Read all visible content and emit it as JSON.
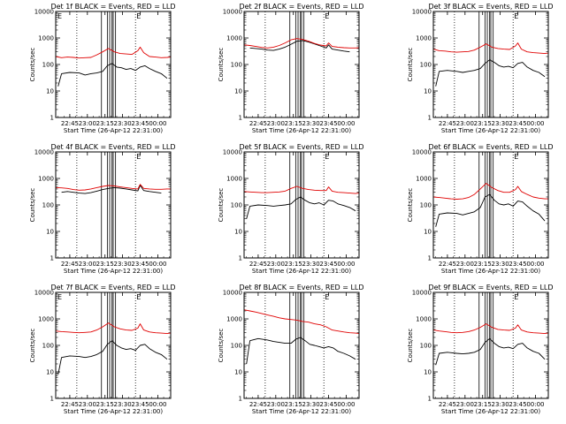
{
  "figure": {
    "xlabel": "Start Time (26-Apr-12 22:31:00)",
    "ylabel": "Counts/sec",
    "y_ticks": [
      {
        "value": 1,
        "label": "1"
      },
      {
        "value": 10,
        "label": "10"
      },
      {
        "value": 100,
        "label": "100"
      },
      {
        "value": 1000,
        "label": "1000"
      },
      {
        "value": 10000,
        "label": "10000"
      }
    ],
    "x_ticks": [
      {
        "value": 12,
        "label": "22:45"
      },
      {
        "value": 27,
        "label": "23:00"
      },
      {
        "value": 42,
        "label": "23:15"
      },
      {
        "value": 57,
        "label": "23:30"
      },
      {
        "value": 72,
        "label": "23:45"
      },
      {
        "value": 87,
        "label": "00:00"
      }
    ],
    "colors": {
      "events": "#000000",
      "lld": "#e00000",
      "axes": "#000000"
    }
  },
  "chart_data": [
    {
      "type": "line",
      "title": "Det 1f BLACK = Events, RED = LLD",
      "marker_left": "E",
      "marker_right": "E",
      "xlim": [
        0,
        98
      ],
      "ylim": [
        1,
        10000
      ],
      "yscale": "log",
      "series": [
        {
          "color": "#000000",
          "x": [
            2,
            5,
            12,
            20,
            25,
            30,
            35,
            40,
            44,
            48,
            52,
            56,
            60,
            64,
            68,
            72,
            76,
            80,
            85,
            90,
            95
          ],
          "y": [
            15,
            45,
            50,
            48,
            40,
            45,
            48,
            55,
            90,
            110,
            80,
            75,
            65,
            70,
            60,
            80,
            90,
            70,
            55,
            45,
            30
          ]
        },
        {
          "color": "#e00000",
          "x": [
            0,
            5,
            10,
            15,
            20,
            25,
            30,
            35,
            40,
            45,
            50,
            55,
            60,
            65,
            70,
            72,
            75,
            80,
            85,
            90,
            95,
            98
          ],
          "y": [
            200,
            180,
            190,
            185,
            175,
            180,
            185,
            230,
            300,
            400,
            300,
            260,
            250,
            240,
            330,
            450,
            280,
            200,
            190,
            180,
            185,
            190
          ]
        }
      ],
      "dashed_x": [
        18,
        68
      ],
      "box_x": [
        [
          39,
          44
        ],
        [
          46,
          48
        ],
        [
          49,
          51
        ]
      ]
    },
    {
      "type": "line",
      "title": "Det 2f BLACK = Events, RED = LLD",
      "marker_left": "",
      "marker_right": "E",
      "xlim": [
        0,
        98
      ],
      "ylim": [
        1,
        10000
      ],
      "yscale": "log",
      "series": [
        {
          "color": "#000000",
          "x": [
            5,
            10,
            15,
            20,
            25,
            30,
            35,
            40,
            45,
            50,
            55,
            60,
            65,
            70,
            72,
            75,
            80,
            85,
            90
          ],
          "y": [
            420,
            400,
            380,
            350,
            340,
            380,
            450,
            580,
            750,
            800,
            700,
            600,
            500,
            420,
            550,
            380,
            350,
            320,
            300
          ]
        },
        {
          "color": "#e00000",
          "x": [
            0,
            5,
            10,
            15,
            20,
            25,
            30,
            35,
            40,
            45,
            50,
            55,
            60,
            65,
            70,
            72,
            75,
            80,
            85,
            90,
            95,
            98
          ],
          "y": [
            550,
            520,
            480,
            440,
            420,
            450,
            520,
            650,
            850,
            950,
            880,
            750,
            620,
            540,
            500,
            650,
            480,
            450,
            430,
            420,
            420,
            430
          ]
        }
      ],
      "dashed_x": [
        18,
        68
      ],
      "box_x": [
        [
          39,
          44
        ],
        [
          46,
          48
        ],
        [
          49,
          51
        ]
      ]
    },
    {
      "type": "line",
      "title": "Det 3f BLACK = Events, RED = LLD",
      "marker_left": "",
      "marker_right": "E",
      "xlim": [
        0,
        98
      ],
      "ylim": [
        1,
        10000
      ],
      "yscale": "log",
      "series": [
        {
          "color": "#000000",
          "x": [
            2,
            5,
            12,
            20,
            25,
            30,
            35,
            40,
            44,
            48,
            52,
            56,
            60,
            64,
            68,
            72,
            76,
            80,
            85,
            90,
            95
          ],
          "y": [
            15,
            55,
            60,
            55,
            50,
            55,
            60,
            70,
            110,
            150,
            120,
            90,
            80,
            85,
            75,
            110,
            120,
            80,
            60,
            50,
            35
          ]
        },
        {
          "color": "#e00000",
          "x": [
            0,
            5,
            10,
            15,
            20,
            25,
            30,
            35,
            40,
            45,
            50,
            55,
            60,
            65,
            70,
            72,
            75,
            80,
            85,
            90,
            95,
            98
          ],
          "y": [
            380,
            330,
            320,
            300,
            290,
            300,
            310,
            350,
            450,
            600,
            450,
            400,
            380,
            370,
            500,
            650,
            380,
            300,
            280,
            270,
            260,
            270
          ]
        }
      ],
      "dashed_x": [
        18,
        68
      ],
      "box_x": [
        [
          39,
          44
        ],
        [
          46,
          48
        ],
        [
          49,
          51
        ]
      ]
    },
    {
      "type": "line",
      "title": "Det 4f BLACK = Events, RED = LLD",
      "marker_left": "",
      "marker_right": "E",
      "xlim": [
        0,
        98
      ],
      "ylim": [
        1,
        10000
      ],
      "yscale": "log",
      "series": [
        {
          "color": "#000000",
          "x": [
            5,
            10,
            15,
            20,
            25,
            30,
            35,
            40,
            45,
            50,
            55,
            60,
            65,
            70,
            72,
            75,
            80,
            85,
            90
          ],
          "y": [
            300,
            320,
            300,
            280,
            270,
            290,
            330,
            380,
            420,
            450,
            430,
            400,
            370,
            340,
            550,
            350,
            320,
            300,
            280
          ]
        },
        {
          "color": "#e00000",
          "x": [
            0,
            5,
            10,
            15,
            20,
            25,
            30,
            35,
            40,
            45,
            50,
            55,
            60,
            65,
            70,
            72,
            75,
            80,
            85,
            90,
            95,
            98
          ],
          "y": [
            450,
            440,
            420,
            380,
            360,
            370,
            400,
            450,
            500,
            540,
            520,
            480,
            450,
            420,
            400,
            600,
            420,
            400,
            390,
            390,
            400,
            400
          ]
        }
      ],
      "dashed_x": [
        18,
        68
      ],
      "box_x": [
        [
          39,
          44
        ],
        [
          46,
          48
        ],
        [
          49,
          51
        ]
      ]
    },
    {
      "type": "line",
      "title": "Det 5f BLACK = Events, RED = LLD",
      "marker_left": "",
      "marker_right": "E",
      "xlim": [
        0,
        98
      ],
      "ylim": [
        1,
        10000
      ],
      "yscale": "log",
      "series": [
        {
          "color": "#000000",
          "x": [
            2,
            5,
            12,
            20,
            25,
            30,
            35,
            40,
            44,
            48,
            52,
            56,
            60,
            64,
            68,
            72,
            76,
            80,
            85,
            90,
            95
          ],
          "y": [
            30,
            90,
            100,
            95,
            90,
            95,
            100,
            110,
            160,
            200,
            150,
            120,
            110,
            120,
            100,
            150,
            140,
            110,
            95,
            80,
            60
          ]
        },
        {
          "color": "#e00000",
          "x": [
            0,
            5,
            10,
            15,
            20,
            25,
            30,
            35,
            40,
            45,
            50,
            55,
            60,
            65,
            70,
            72,
            75,
            80,
            85,
            90,
            95,
            98
          ],
          "y": [
            320,
            310,
            300,
            290,
            290,
            300,
            310,
            330,
            420,
            500,
            420,
            380,
            360,
            350,
            350,
            480,
            330,
            300,
            290,
            280,
            270,
            280
          ]
        }
      ],
      "dashed_x": [
        18,
        68
      ],
      "box_x": [
        [
          39,
          44
        ],
        [
          46,
          48
        ],
        [
          49,
          51
        ]
      ]
    },
    {
      "type": "line",
      "title": "Det 6f BLACK = Events, RED = LLD",
      "marker_left": "",
      "marker_right": "E",
      "xlim": [
        0,
        98
      ],
      "ylim": [
        1,
        10000
      ],
      "yscale": "log",
      "series": [
        {
          "color": "#000000",
          "x": [
            2,
            5,
            12,
            20,
            25,
            30,
            35,
            40,
            44,
            48,
            52,
            56,
            60,
            64,
            68,
            72,
            76,
            80,
            85,
            90,
            95
          ],
          "y": [
            15,
            45,
            50,
            48,
            42,
            48,
            55,
            80,
            200,
            250,
            150,
            110,
            100,
            110,
            90,
            140,
            130,
            90,
            60,
            45,
            25
          ]
        },
        {
          "color": "#e00000",
          "x": [
            0,
            5,
            10,
            15,
            20,
            25,
            30,
            35,
            40,
            45,
            50,
            55,
            60,
            65,
            70,
            72,
            75,
            80,
            85,
            90,
            95,
            98
          ],
          "y": [
            200,
            190,
            180,
            170,
            165,
            170,
            190,
            250,
            400,
            650,
            450,
            350,
            300,
            300,
            380,
            500,
            320,
            250,
            200,
            180,
            170,
            170
          ]
        }
      ],
      "dashed_x": [
        18,
        68
      ],
      "box_x": [
        [
          39,
          44
        ],
        [
          46,
          48
        ],
        [
          49,
          51
        ]
      ]
    },
    {
      "type": "line",
      "title": "Det 7f BLACK = Events, RED = LLD",
      "marker_left": "E",
      "marker_right": "E",
      "xlim": [
        0,
        98
      ],
      "ylim": [
        1,
        10000
      ],
      "yscale": "log",
      "series": [
        {
          "color": "#000000",
          "x": [
            2,
            5,
            12,
            20,
            25,
            30,
            35,
            40,
            44,
            48,
            52,
            56,
            60,
            64,
            68,
            72,
            76,
            80,
            85,
            90,
            95
          ],
          "y": [
            8,
            35,
            40,
            38,
            35,
            38,
            45,
            60,
            110,
            150,
            100,
            80,
            70,
            75,
            65,
            100,
            110,
            75,
            55,
            45,
            30
          ]
        },
        {
          "color": "#e00000",
          "x": [
            0,
            5,
            10,
            15,
            20,
            25,
            30,
            35,
            40,
            45,
            50,
            55,
            60,
            65,
            70,
            72,
            75,
            80,
            85,
            90,
            95,
            98
          ],
          "y": [
            350,
            330,
            320,
            310,
            300,
            310,
            320,
            380,
            500,
            700,
            500,
            420,
            380,
            370,
            450,
            650,
            380,
            320,
            300,
            290,
            280,
            290
          ]
        }
      ],
      "dashed_x": [
        18,
        68
      ],
      "box_x": [
        [
          39,
          44
        ],
        [
          46,
          48
        ],
        [
          49,
          51
        ]
      ]
    },
    {
      "type": "line",
      "title": "Det 8f BLACK = Events, RED = LLD",
      "marker_left": "",
      "marker_right": "E",
      "xlim": [
        0,
        98
      ],
      "ylim": [
        1,
        10000
      ],
      "yscale": "log",
      "series": [
        {
          "color": "#000000",
          "x": [
            2,
            5,
            12,
            20,
            25,
            30,
            35,
            40,
            44,
            48,
            52,
            56,
            60,
            64,
            68,
            72,
            76,
            80,
            85,
            90,
            95
          ],
          "y": [
            20,
            150,
            180,
            160,
            140,
            130,
            120,
            120,
            170,
            200,
            150,
            110,
            100,
            90,
            80,
            90,
            80,
            60,
            50,
            40,
            30
          ]
        },
        {
          "color": "#e00000",
          "x": [
            0,
            5,
            10,
            15,
            20,
            25,
            30,
            35,
            40,
            45,
            50,
            55,
            60,
            65,
            70,
            72,
            75,
            80,
            85,
            90,
            95,
            98
          ],
          "y": [
            2200,
            2000,
            1800,
            1600,
            1400,
            1250,
            1100,
            1000,
            950,
            900,
            800,
            750,
            650,
            600,
            500,
            450,
            380,
            350,
            320,
            300,
            290,
            280
          ]
        }
      ],
      "dashed_x": [
        18,
        68
      ],
      "box_x": [
        [
          39,
          44
        ],
        [
          46,
          48
        ],
        [
          49,
          51
        ]
      ]
    },
    {
      "type": "line",
      "title": "Det 9f BLACK = Events, RED = LLD",
      "marker_left": "",
      "marker_right": "E",
      "xlim": [
        0,
        98
      ],
      "ylim": [
        1,
        10000
      ],
      "yscale": "log",
      "series": [
        {
          "color": "#000000",
          "x": [
            2,
            5,
            12,
            20,
            25,
            30,
            35,
            40,
            44,
            48,
            52,
            56,
            60,
            64,
            68,
            72,
            76,
            80,
            85,
            90,
            95
          ],
          "y": [
            18,
            50,
            55,
            50,
            48,
            50,
            55,
            70,
            130,
            180,
            120,
            90,
            80,
            85,
            75,
            110,
            120,
            80,
            60,
            50,
            30
          ]
        },
        {
          "color": "#e00000",
          "x": [
            0,
            5,
            10,
            15,
            20,
            25,
            30,
            35,
            40,
            45,
            50,
            55,
            60,
            65,
            70,
            72,
            75,
            80,
            85,
            90,
            95,
            98
          ],
          "y": [
            380,
            350,
            330,
            310,
            300,
            310,
            330,
            380,
            480,
            650,
            480,
            400,
            380,
            370,
            450,
            600,
            380,
            320,
            300,
            290,
            280,
            290
          ]
        }
      ],
      "dashed_x": [
        18,
        68
      ],
      "box_x": [
        [
          39,
          44
        ],
        [
          46,
          48
        ],
        [
          49,
          51
        ]
      ]
    }
  ]
}
